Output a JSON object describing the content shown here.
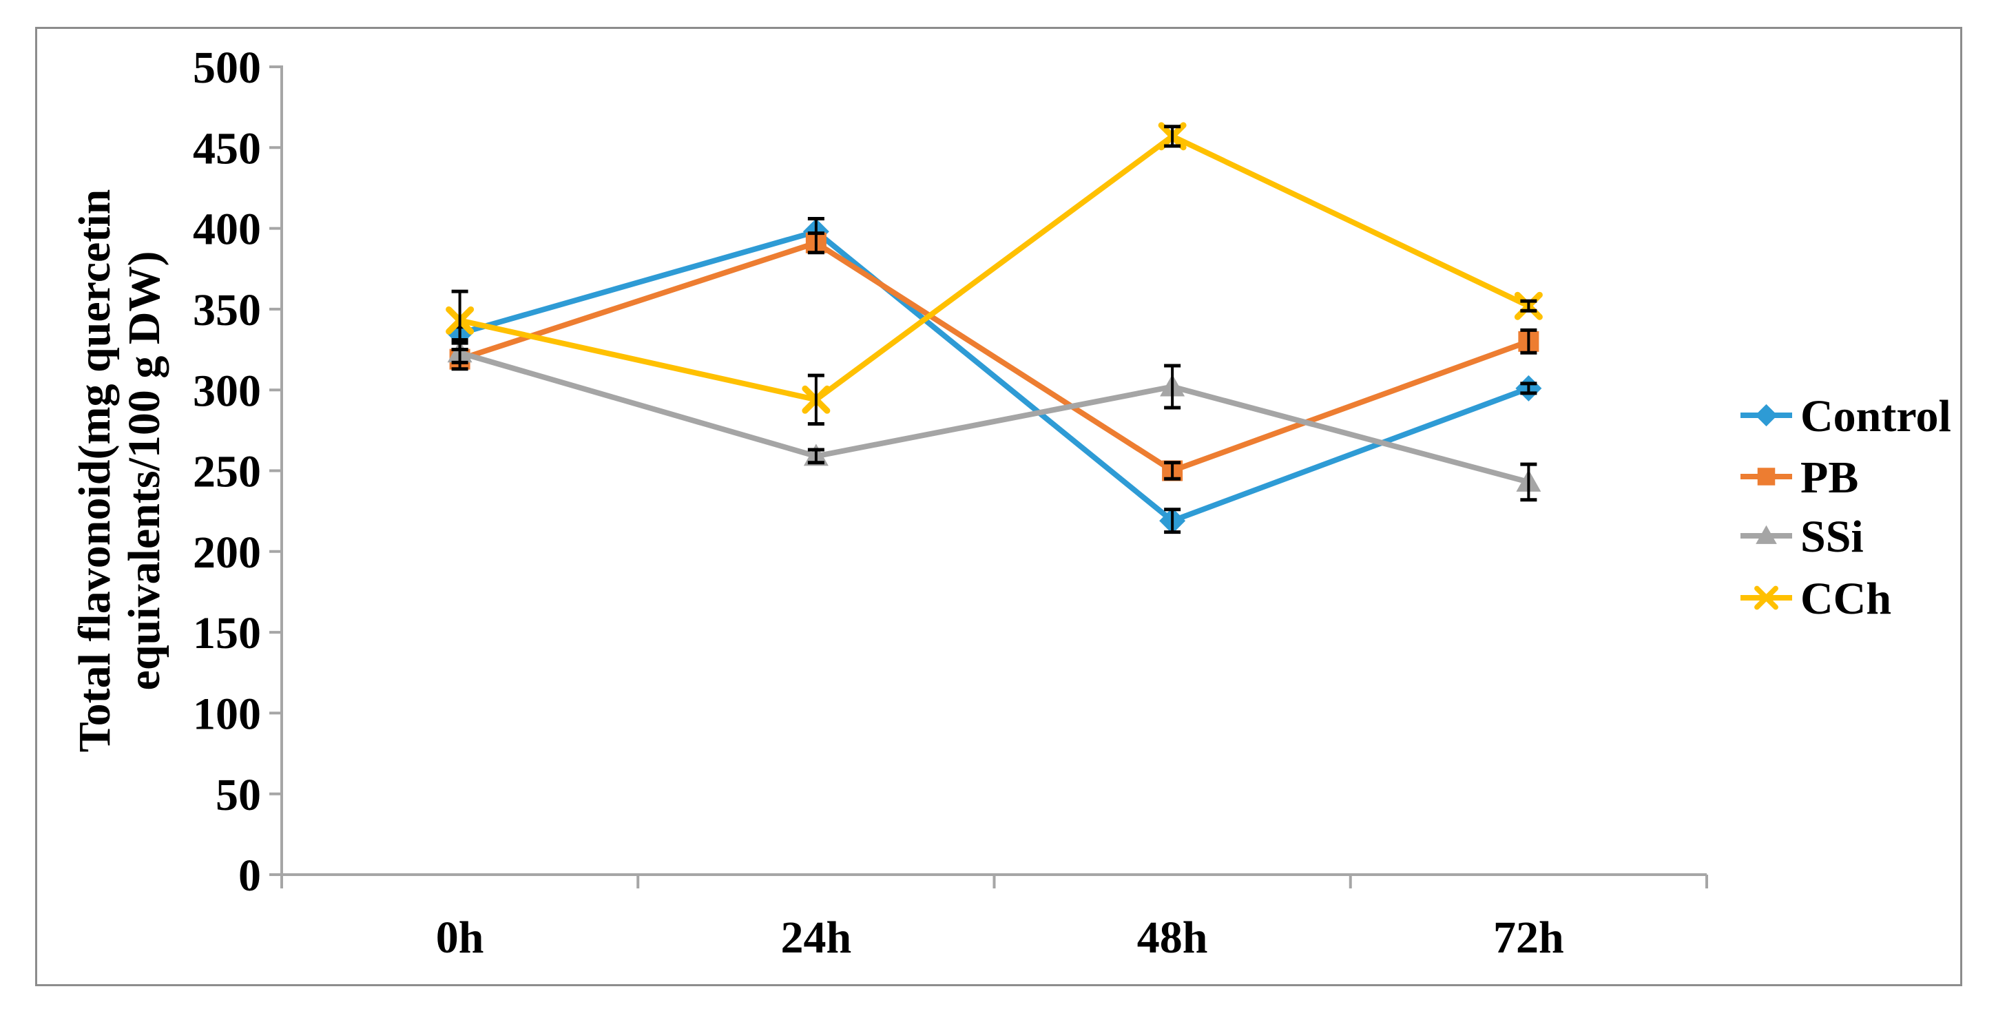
{
  "figure": {
    "kind": "excel-style line chart with error bars",
    "background": "#FFFFFF",
    "border_color": "#8C8C8C"
  },
  "chart_data": {
    "type": "line",
    "title": "",
    "xlabel": "",
    "ylabel": "Total flavonoid(mg quercetin equivalents/100 g DW)",
    "ylabel_lines": [
      "Total flavonoid(mg quercetin",
      "equivalents/100 g DW)"
    ],
    "categories": [
      "0h",
      "24h",
      "48h",
      "72h"
    ],
    "series": [
      {
        "name": "Control",
        "color": "#2E9BD5",
        "marker": "diamond",
        "values": [
          335,
          398,
          219,
          301
        ],
        "errors": [
          4,
          8,
          7,
          3
        ]
      },
      {
        "name": "PB",
        "color": "#ED7D31",
        "marker": "square",
        "values": [
          319,
          391,
          250,
          330
        ],
        "errors": [
          6,
          6,
          5,
          7
        ]
      },
      {
        "name": "SSi",
        "color": "#A5A5A5",
        "marker": "triangle",
        "values": [
          323,
          259,
          302,
          243
        ],
        "errors": [
          6,
          4,
          13,
          11
        ]
      },
      {
        "name": "CCh",
        "color": "#FFC000",
        "marker": "x",
        "values": [
          343,
          294,
          457,
          352
        ],
        "errors": [
          18,
          15,
          6,
          3
        ]
      }
    ],
    "ylim": [
      0,
      500
    ],
    "ytick_step": 50,
    "ytick_labels": [
      "0",
      "50",
      "100",
      "150",
      "200",
      "250",
      "300",
      "350",
      "400",
      "450",
      "500"
    ],
    "grid": false,
    "legend_position": "right",
    "legend_labels": [
      "Control",
      "PB",
      "SSi",
      "CCh"
    ],
    "axis_color": "#A6A6A6",
    "error_bar_color": "#000000",
    "text_color": "#000000"
  }
}
